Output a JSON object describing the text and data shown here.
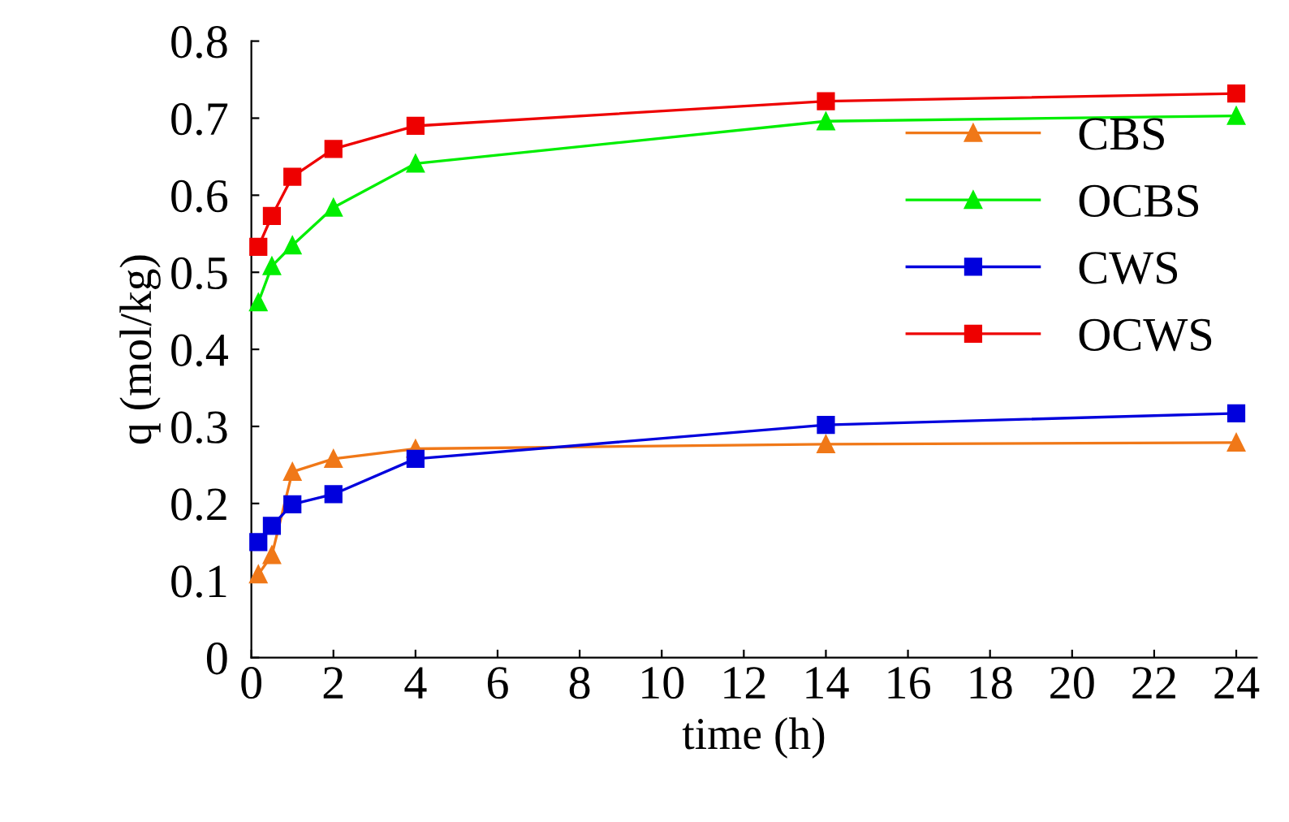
{
  "chart_data": {
    "type": "line",
    "xlabel": "time (h)",
    "ylabel": "q (mol/kg)",
    "xlim": [
      0,
      24.5
    ],
    "ylim": [
      0,
      0.8
    ],
    "xticks": [
      0,
      2,
      4,
      6,
      8,
      10,
      12,
      14,
      16,
      18,
      20,
      22,
      24
    ],
    "yticks": [
      0,
      0.1,
      0.2,
      0.3,
      0.4,
      0.5,
      0.6,
      0.7,
      0.8
    ],
    "grid": false,
    "legend": "right",
    "line_style": "solid",
    "series": [
      {
        "name": "CBS",
        "color": "#f07818",
        "marker": "triangle",
        "x": [
          0.17,
          0.5,
          1,
          2,
          4,
          14,
          24
        ],
        "values": [
          0.108,
          0.133,
          0.241,
          0.258,
          0.271,
          0.277,
          0.279
        ]
      },
      {
        "name": "OCBS",
        "color": "#00ee00",
        "marker": "triangle",
        "x": [
          0.17,
          0.5,
          1,
          2,
          4,
          14,
          24
        ],
        "values": [
          0.461,
          0.508,
          0.535,
          0.584,
          0.641,
          0.696,
          0.703
        ]
      },
      {
        "name": "CWS",
        "color": "#0000dd",
        "marker": "square",
        "x": [
          0.17,
          0.5,
          1,
          2,
          4,
          14,
          24
        ],
        "values": [
          0.15,
          0.171,
          0.199,
          0.212,
          0.258,
          0.302,
          0.317
        ]
      },
      {
        "name": "OCWS",
        "color": "#ee0000",
        "marker": "square",
        "x": [
          0.17,
          0.5,
          1,
          2,
          4,
          14,
          24
        ],
        "values": [
          0.533,
          0.573,
          0.624,
          0.66,
          0.69,
          0.722,
          0.732
        ]
      }
    ]
  }
}
